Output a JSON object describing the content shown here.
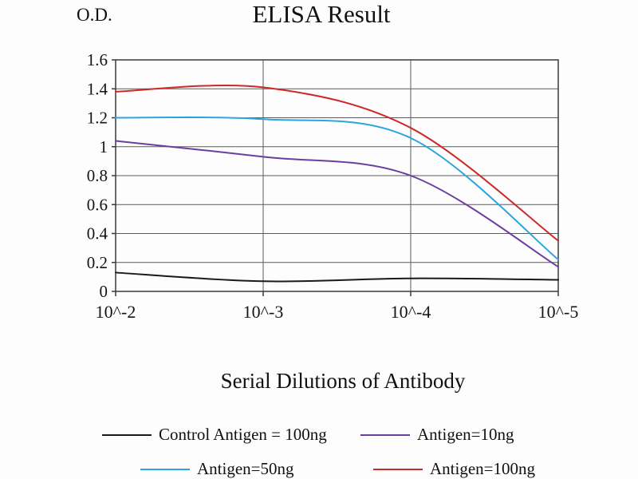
{
  "chart_data": {
    "type": "line",
    "title": "ELISA Result",
    "ylabel": "O.D.",
    "xlabel": "Serial Dilutions of Antibody",
    "x_tick_labels": [
      "10^-2",
      "10^-3",
      "10^-4",
      "10^-5"
    ],
    "y_tick_labels": [
      "0",
      "0.2",
      "0.4",
      "0.6",
      "0.8",
      "1",
      "1.2",
      "1.4",
      "1.6"
    ],
    "ylim": [
      0,
      1.6
    ],
    "grid": true,
    "grid_color": "#5b5b5b",
    "axis_color": "#3a3a3a",
    "legend_position": "bottom",
    "series": [
      {
        "name": "Control Antigen = 100ng",
        "color": "#1a1a1a",
        "values": [
          0.13,
          0.07,
          0.09,
          0.08
        ]
      },
      {
        "name": "Antigen=10ng",
        "color": "#6b3fa0",
        "values": [
          1.04,
          0.93,
          0.8,
          0.17
        ]
      },
      {
        "name": "Antigen=50ng",
        "color": "#2ba6de",
        "values": [
          1.2,
          1.19,
          1.06,
          0.22
        ]
      },
      {
        "name": "Antigen=100ng",
        "color": "#cc2a27",
        "values": [
          1.38,
          1.41,
          1.13,
          0.35
        ]
      }
    ]
  }
}
